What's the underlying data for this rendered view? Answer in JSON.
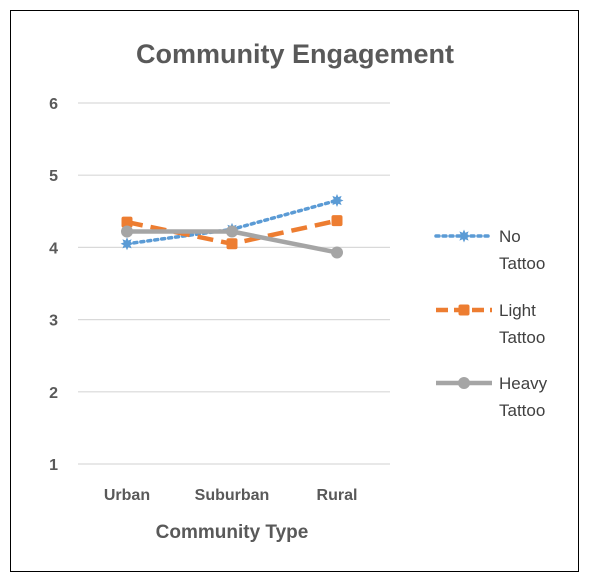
{
  "chart_data": {
    "type": "line",
    "title": "Community Engagement",
    "xlabel": "Community Type",
    "ylabel": "",
    "categories": [
      "Urban",
      "Suburban",
      "Rural"
    ],
    "ylim": [
      1,
      6
    ],
    "yticks": [
      1,
      2,
      3,
      4,
      5,
      6
    ],
    "grid": true,
    "legend_position": "right",
    "series": [
      {
        "name": "No Tattoo",
        "legend_lines": [
          "No",
          "Tattoo"
        ],
        "values": [
          4.05,
          4.25,
          4.65
        ],
        "color": "#5B9BD5",
        "line_style": "dotted",
        "marker": "star"
      },
      {
        "name": "Light Tattoo",
        "legend_lines": [
          "Light",
          "Tattoo"
        ],
        "values": [
          4.35,
          4.05,
          4.37
        ],
        "color": "#ED7D31",
        "line_style": "dashed",
        "marker": "square"
      },
      {
        "name": "Heavy Tattoo",
        "legend_lines": [
          "Heavy",
          "Tattoo"
        ],
        "values": [
          4.22,
          4.22,
          3.93
        ],
        "color": "#A5A5A5",
        "line_style": "solid",
        "marker": "circle"
      }
    ],
    "gridline_color": "#D9D9D9"
  }
}
